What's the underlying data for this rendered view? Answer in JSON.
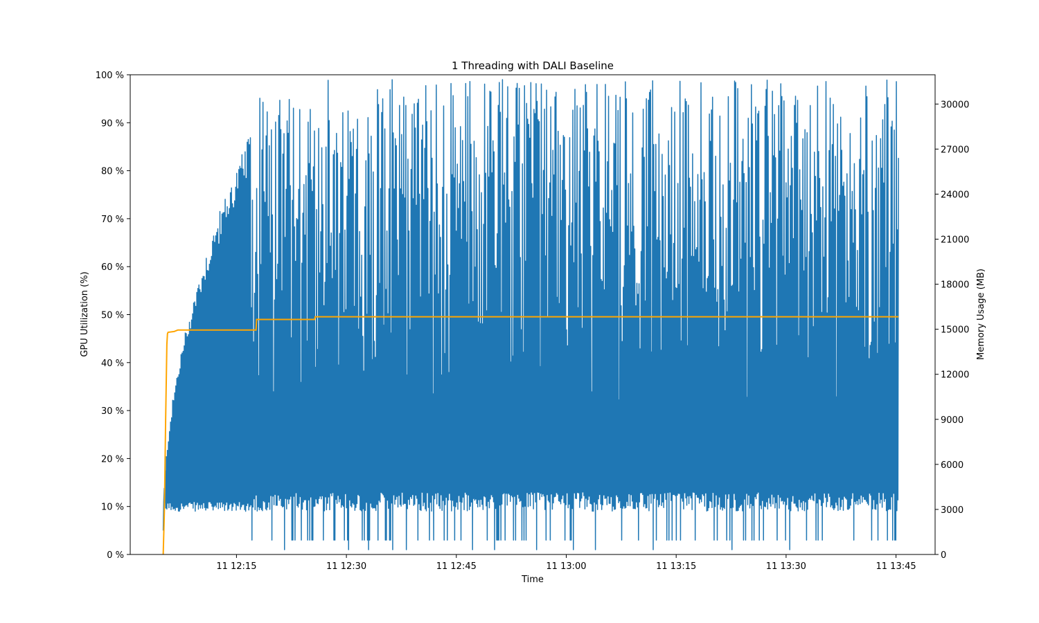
{
  "chart_data": {
    "type": "line",
    "title": "1 Threading with DALI Baseline",
    "xlabel": "Time",
    "ylabel_left": "GPU Utilization (%)",
    "ylabel_right": "Memory Usage (MB)",
    "x_ticks": [
      "11 12:15",
      "11 12:30",
      "11 12:45",
      "11 13:00",
      "11 13:15",
      "11 13:30",
      "11 13:45"
    ],
    "y_left_ticks": [
      "0 %",
      "10 %",
      "20 %",
      "30 %",
      "40 %",
      "50 %",
      "60 %",
      "70 %",
      "80 %",
      "90 %",
      "100 %"
    ],
    "y_right_ticks": [
      "0",
      "3000",
      "6000",
      "9000",
      "12000",
      "15000",
      "18000",
      "21000",
      "24000",
      "27000",
      "30000"
    ],
    "ylim_left": [
      0,
      100
    ],
    "ylim_right": [
      0,
      31950
    ],
    "x_range_minutes": [
      "12:00:30",
      "13:50:20"
    ],
    "grid": false,
    "series": [
      {
        "axis": "left",
        "color": "#1f77b4",
        "x_start": "12:05:00",
        "x_end": "13:45:20",
        "ramp_end": "12:17:00",
        "ramp_from": 5,
        "ramp_to": 88,
        "min_value": 1,
        "baseline": 9,
        "max_value": 99
      },
      {
        "axis": "right",
        "color": "#ffa500",
        "x": [
          "12:05:00",
          "12:05:10",
          "12:05:20",
          "12:05:30",
          "12:05:35",
          "12:05:40",
          "12:06:30",
          "12:07:00",
          "12:17:40",
          "12:17:45",
          "12:25:40",
          "12:25:45",
          "13:45:20"
        ],
        "y": [
          0,
          3000,
          9000,
          14000,
          14700,
          14800,
          14850,
          14950,
          14950,
          15650,
          15650,
          15830,
          15830
        ]
      }
    ]
  }
}
